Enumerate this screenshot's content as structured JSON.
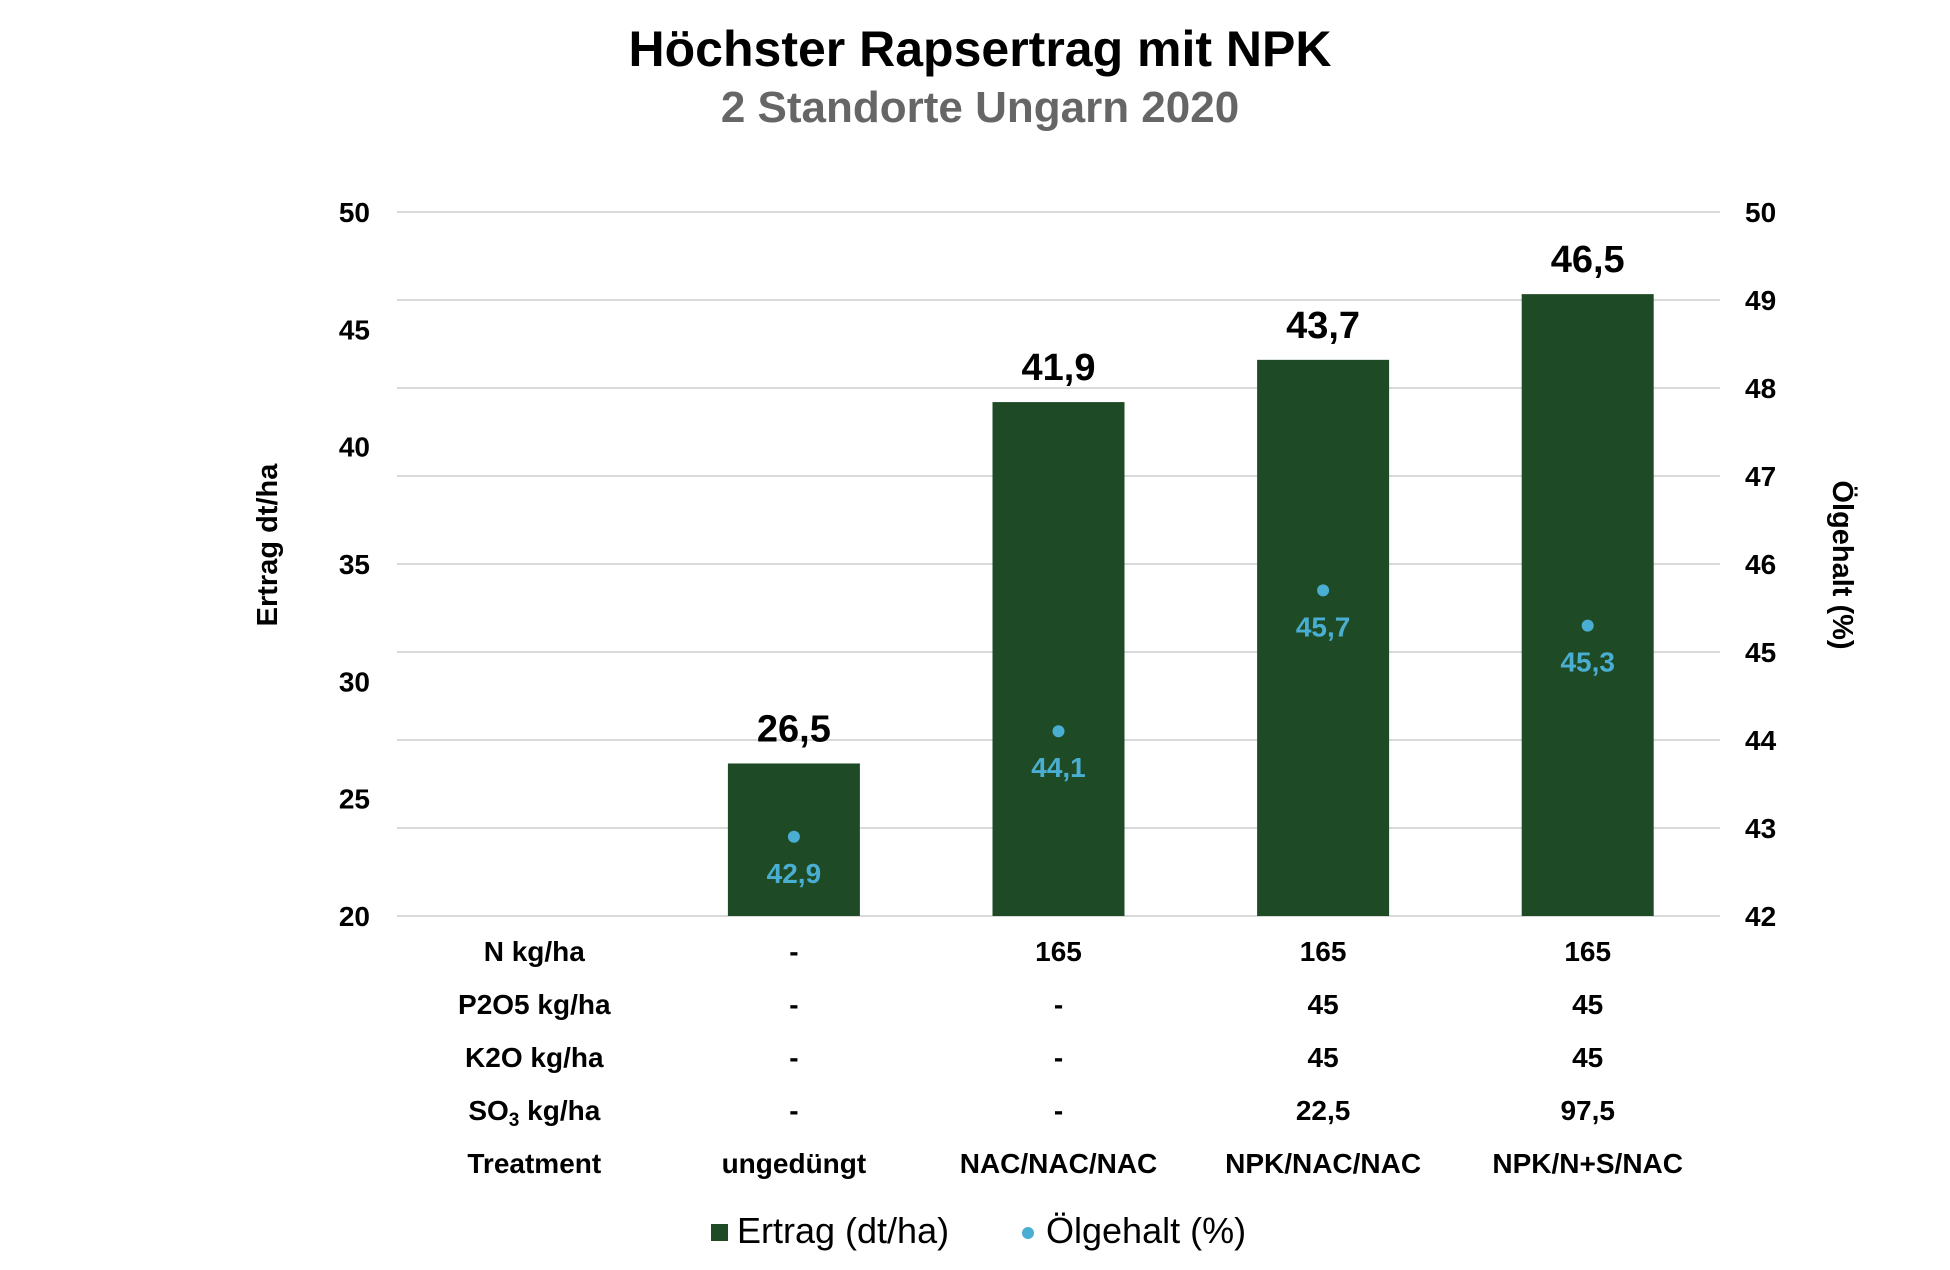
{
  "chart_data": {
    "type": "bar",
    "title": "Höchster Rapsertrag mit NPK",
    "subtitle": "2 Standorte Ungarn 2020",
    "ylabel": "Ertrag dt/ha",
    "y2label": "Ölgehalt (%)",
    "ylim": [
      20,
      50
    ],
    "y2lim": [
      42,
      50
    ],
    "yticks": [
      "50",
      "45",
      "40",
      "35",
      "30",
      "25",
      "20"
    ],
    "y2ticks": [
      "50",
      "49",
      "48",
      "47",
      "46",
      "45",
      "44",
      "43",
      "42"
    ],
    "categories": [
      "",
      "ungedüngt",
      "NAC/NAC/NAC",
      "NPK/NAC/NAC",
      "NPK/N+S/NAC"
    ],
    "series": [
      {
        "name": "Ertrag (dt/ha)",
        "type": "bar",
        "axis": "left",
        "values": [
          null,
          26.5,
          41.9,
          43.7,
          46.5
        ],
        "labels": [
          "",
          "26,5",
          "41,9",
          "43,7",
          "46,5"
        ]
      },
      {
        "name": "Ölgehalt (%)",
        "type": "scatter",
        "axis": "right",
        "values": [
          null,
          42.9,
          44.1,
          45.7,
          45.3
        ],
        "labels": [
          "",
          "42,9",
          "44,1",
          "45,7",
          "45,3"
        ]
      }
    ],
    "table": {
      "rows": [
        {
          "label": "N kg/ha",
          "values": [
            "-",
            "165",
            "165",
            "165"
          ]
        },
        {
          "label": "P2O5 kg/ha",
          "values": [
            "-",
            "-",
            "45",
            "45"
          ]
        },
        {
          "label": "K2O kg/ha",
          "values": [
            "-",
            "-",
            "45",
            "45"
          ]
        },
        {
          "label_main": "SO",
          "label_sub": "3",
          "label_tail": " kg/ha",
          "values": [
            "-",
            "-",
            "22,5",
            "97,5"
          ]
        },
        {
          "label": "Treatment",
          "values": [
            "ungedüngt",
            "NAC/NAC/NAC",
            "NPK/NAC/NAC",
            "NPK/N+S/NAC"
          ]
        }
      ]
    },
    "legend_position": "bottom",
    "grid": true,
    "colors": {
      "bar": "#1e4b26",
      "dot": "#4aaed2",
      "grid": "#d9d9d9",
      "text": "#000000",
      "subtitle": "#666666"
    }
  }
}
